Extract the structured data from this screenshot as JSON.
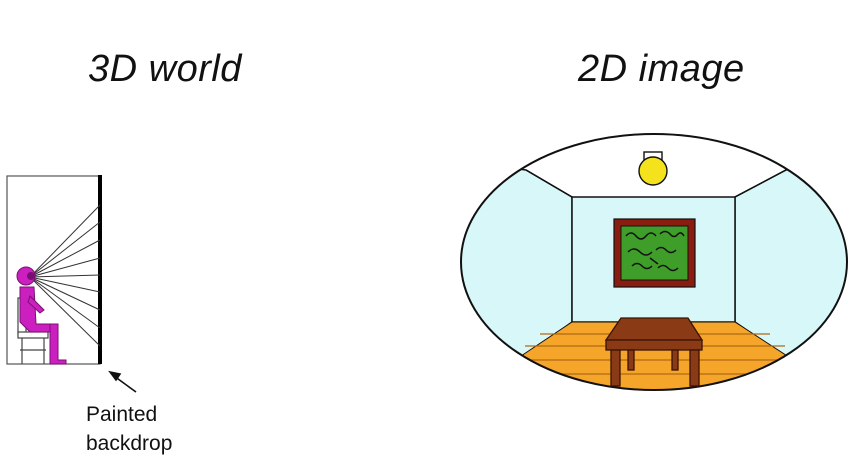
{
  "left_panel": {
    "title": "3D world",
    "caption_line1": "Painted",
    "caption_line2": "backdrop"
  },
  "right_panel": {
    "title": "2D image"
  },
  "colors": {
    "person": "#cc1fc0",
    "wall": "#d8f7f8",
    "floor": "#f5a52a",
    "ceiling": "#ffffff",
    "painting_frame": "#8b1d10",
    "painting_canvas": "#3f9e2a",
    "lamp": "#f4e21c",
    "table": "#8a3a14"
  },
  "icons": [
    "seated-viewer",
    "ceiling-lamp",
    "framed-painting",
    "table"
  ]
}
